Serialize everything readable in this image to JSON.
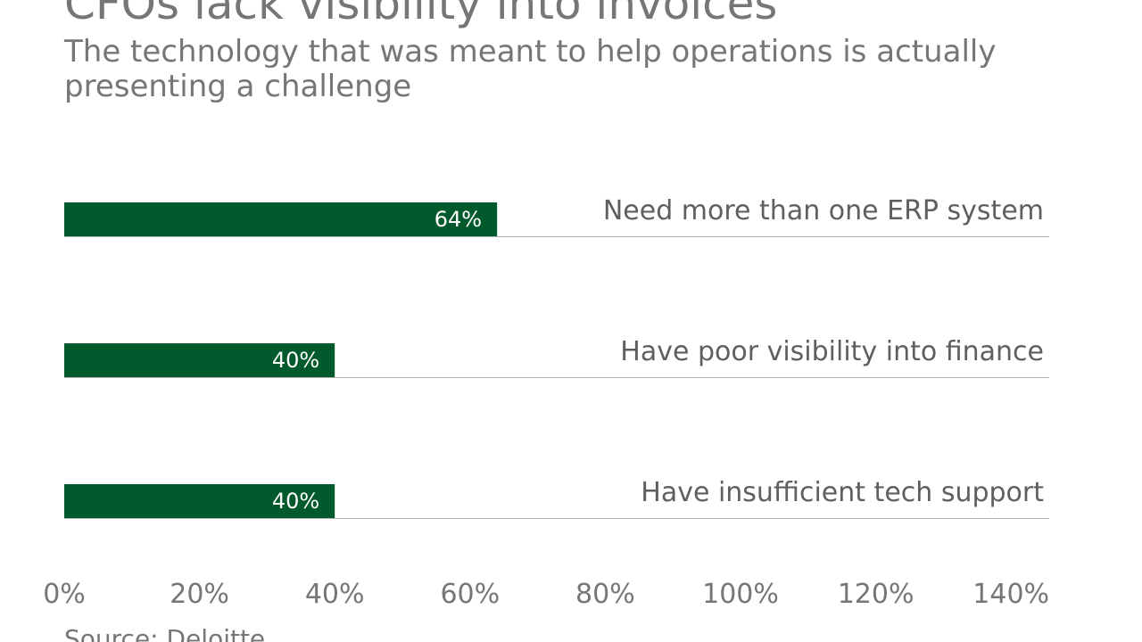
{
  "title": "CFOs lack visibility into invoices",
  "subtitle": "The technology that was meant to help operations is actually presenting a challenge",
  "source": "Source: Deloitte",
  "colors": {
    "bar": "#005a2b",
    "baseline": "#b3b3b3",
    "text": "#767676"
  },
  "chart_data": {
    "type": "bar",
    "orientation": "horizontal",
    "categories": [
      "Need more than one ERP system",
      "Have poor visibility into finance",
      "Have insufficient tech support"
    ],
    "values": [
      64,
      40,
      40
    ],
    "value_labels": [
      "64%",
      "40%",
      "40%"
    ],
    "xlim": [
      0,
      140
    ],
    "x_ticks": [
      0,
      20,
      40,
      60,
      80,
      100,
      120,
      140
    ],
    "x_tick_labels": [
      "0%",
      "20%",
      "40%",
      "60%",
      "80%",
      "100%",
      "120%",
      "140%"
    ],
    "grid": false,
    "legend": "none"
  }
}
